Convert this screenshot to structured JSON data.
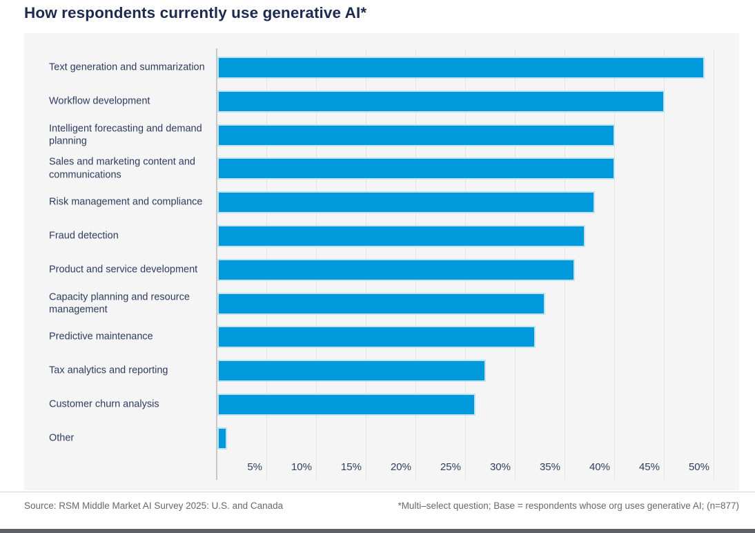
{
  "title": "How respondents currently use generative AI*",
  "footer": {
    "source": "Source: RSM Middle Market AI Survey 2025: U.S. and Canada",
    "note": "*Multi–select question; Base = respondents whose org uses generative AI; (n=877)"
  },
  "colors": {
    "title": "#1b2a4e",
    "label": "#2e3c5e",
    "tick": "#2e3c5e",
    "bar": "#0099db",
    "bar_border": "#bfe2f5",
    "panel_bg": "#f5f5f6",
    "grid": "#e3e4e5",
    "axis": "#c6c8ca",
    "footer": "#65686d",
    "divider": "#d3d5d7",
    "bottombar": "#5d6066"
  },
  "chart_data": {
    "type": "bar",
    "orientation": "horizontal",
    "title": "How respondents currently use generative AI*",
    "categories": [
      "Text generation and summarization",
      "Workflow development",
      "Intelligent forecasting and demand planning",
      "Sales and marketing content and communications",
      "Risk management and compliance",
      "Fraud detection",
      "Product and service development",
      "Capacity planning and resource management",
      "Predictive maintenance",
      "Tax analytics and reporting",
      "Customer churn analysis",
      "Other"
    ],
    "values": [
      49,
      45,
      40,
      40,
      38,
      37,
      36,
      33,
      32,
      27,
      26,
      1
    ],
    "unit": "%",
    "xlim": [
      0,
      50
    ],
    "x_tick_step": 5,
    "x_tick_labels": [
      "5%",
      "10%",
      "15%",
      "20%",
      "25%",
      "30%",
      "35%",
      "40%",
      "45%",
      "50%"
    ],
    "grid": true,
    "legend": false
  }
}
